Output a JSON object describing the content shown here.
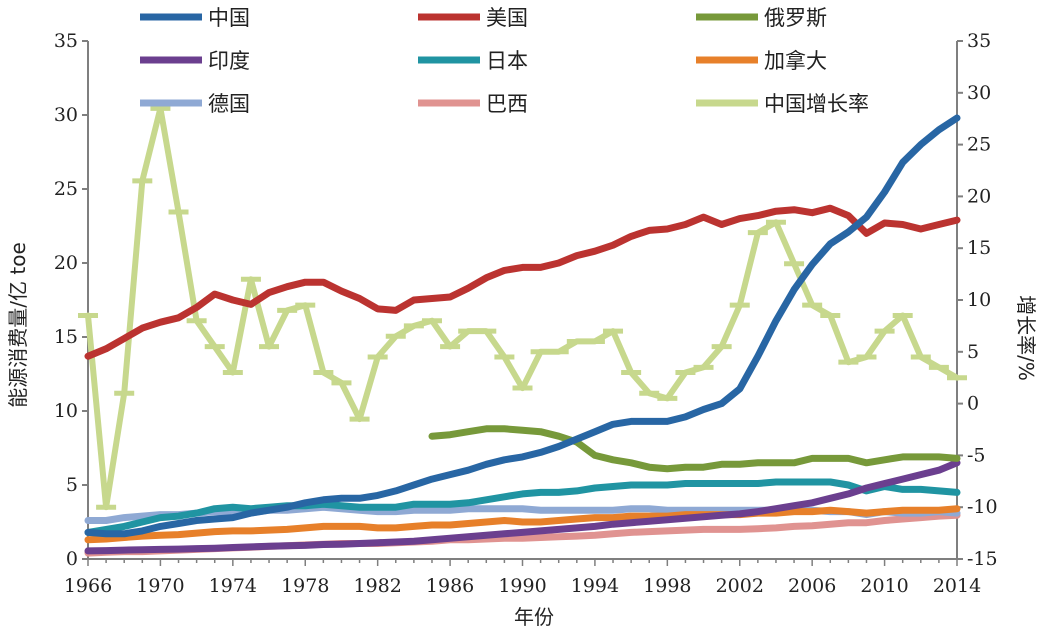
{
  "chart_data": {
    "type": "line",
    "x": [
      1966,
      1967,
      1968,
      1969,
      1970,
      1971,
      1972,
      1973,
      1974,
      1975,
      1976,
      1977,
      1978,
      1979,
      1980,
      1981,
      1982,
      1983,
      1984,
      1985,
      1986,
      1987,
      1988,
      1989,
      1990,
      1991,
      1992,
      1993,
      1994,
      1995,
      1996,
      1997,
      1998,
      1999,
      2000,
      2001,
      2002,
      2003,
      2004,
      2005,
      2006,
      2007,
      2008,
      2009,
      2010,
      2011,
      2012,
      2013,
      2014
    ],
    "xticks": [
      "1966",
      "1970",
      "1974",
      "1978",
      "1982",
      "1986",
      "1990",
      "1994",
      "1998",
      "2002",
      "2006",
      "2010",
      "2014"
    ],
    "xlabel": "年份",
    "ylabel_left": "能源消费量/亿 toe",
    "ylabel_right": "增长率/%",
    "ylim_left": [
      0,
      35
    ],
    "ylim_right": [
      -15,
      35
    ],
    "yticks_left": [
      0,
      5,
      10,
      15,
      20,
      25,
      30,
      35
    ],
    "yticks_right": [
      -15,
      -10,
      -5,
      0,
      5,
      10,
      15,
      20,
      25,
      30,
      35
    ],
    "legend_position": "top",
    "series": [
      {
        "name": "中国",
        "color": "#2866a4",
        "axis": "left",
        "markers": false,
        "values": [
          1.8,
          1.7,
          1.7,
          1.9,
          2.2,
          2.4,
          2.6,
          2.7,
          2.8,
          3.1,
          3.3,
          3.5,
          3.8,
          4.0,
          4.1,
          4.1,
          4.3,
          4.6,
          5.0,
          5.4,
          5.7,
          6.0,
          6.4,
          6.7,
          6.9,
          7.2,
          7.6,
          8.1,
          8.6,
          9.1,
          9.3,
          9.3,
          9.3,
          9.6,
          10.1,
          10.5,
          11.5,
          13.7,
          16.1,
          18.2,
          19.9,
          21.3,
          22.1,
          23.1,
          24.8,
          26.8,
          28.0,
          29.0,
          29.8
        ]
      },
      {
        "name": "美国",
        "color": "#bb3330",
        "axis": "left",
        "markers": false,
        "values": [
          13.7,
          14.2,
          14.9,
          15.6,
          16.0,
          16.3,
          17.0,
          17.9,
          17.5,
          17.2,
          18.0,
          18.4,
          18.7,
          18.7,
          18.1,
          17.6,
          16.9,
          16.8,
          17.5,
          17.6,
          17.7,
          18.3,
          19.0,
          19.5,
          19.7,
          19.7,
          20.0,
          20.5,
          20.8,
          21.2,
          21.8,
          22.2,
          22.3,
          22.6,
          23.1,
          22.6,
          23.0,
          23.2,
          23.5,
          23.6,
          23.4,
          23.7,
          23.2,
          22.0,
          22.7,
          22.6,
          22.3,
          22.6,
          22.9
        ]
      },
      {
        "name": "俄罗斯",
        "color": "#77993a",
        "axis": "left",
        "markers": false,
        "values": [
          null,
          null,
          null,
          null,
          null,
          null,
          null,
          null,
          null,
          null,
          null,
          null,
          null,
          null,
          null,
          null,
          null,
          null,
          null,
          8.3,
          8.4,
          8.6,
          8.8,
          8.8,
          8.7,
          8.6,
          8.3,
          7.9,
          7.0,
          6.7,
          6.5,
          6.2,
          6.1,
          6.2,
          6.2,
          6.4,
          6.4,
          6.5,
          6.5,
          6.5,
          6.8,
          6.8,
          6.8,
          6.5,
          6.7,
          6.9,
          6.9,
          6.9,
          6.8
        ]
      },
      {
        "name": "印度",
        "color": "#6b3f8f",
        "axis": "left",
        "markers": false,
        "values": [
          0.55,
          0.57,
          0.6,
          0.62,
          0.65,
          0.67,
          0.7,
          0.73,
          0.78,
          0.82,
          0.86,
          0.9,
          0.92,
          0.98,
          1.0,
          1.05,
          1.1,
          1.15,
          1.2,
          1.3,
          1.4,
          1.5,
          1.6,
          1.7,
          1.8,
          1.9,
          2.0,
          2.1,
          2.2,
          2.35,
          2.45,
          2.55,
          2.65,
          2.75,
          2.85,
          2.95,
          3.05,
          3.2,
          3.4,
          3.6,
          3.8,
          4.1,
          4.4,
          4.8,
          5.1,
          5.4,
          5.7,
          6.0,
          6.5
        ]
      },
      {
        "name": "日本",
        "color": "#2094a2",
        "axis": "left",
        "markers": false,
        "values": [
          1.8,
          2.0,
          2.2,
          2.5,
          2.8,
          2.9,
          3.1,
          3.4,
          3.5,
          3.4,
          3.5,
          3.6,
          3.6,
          3.7,
          3.6,
          3.5,
          3.5,
          3.5,
          3.7,
          3.7,
          3.7,
          3.8,
          4.0,
          4.2,
          4.4,
          4.5,
          4.5,
          4.6,
          4.8,
          4.9,
          5.0,
          5.0,
          5.0,
          5.1,
          5.1,
          5.1,
          5.1,
          5.1,
          5.2,
          5.2,
          5.2,
          5.2,
          5.0,
          4.6,
          4.9,
          4.7,
          4.7,
          4.6,
          4.5
        ]
      },
      {
        "name": "加拿大",
        "color": "#e7802a",
        "axis": "left",
        "markers": false,
        "values": [
          1.3,
          1.35,
          1.45,
          1.55,
          1.6,
          1.65,
          1.75,
          1.85,
          1.9,
          1.9,
          1.95,
          2.0,
          2.1,
          2.2,
          2.2,
          2.2,
          2.1,
          2.1,
          2.2,
          2.3,
          2.3,
          2.4,
          2.5,
          2.6,
          2.5,
          2.5,
          2.6,
          2.7,
          2.8,
          2.8,
          2.9,
          2.9,
          2.9,
          3.0,
          3.0,
          3.0,
          3.0,
          3.1,
          3.1,
          3.2,
          3.2,
          3.3,
          3.2,
          3.1,
          3.2,
          3.3,
          3.3,
          3.3,
          3.4
        ]
      },
      {
        "name": "德国",
        "color": "#8fa9d4",
        "axis": "left",
        "markers": false,
        "values": [
          2.6,
          2.6,
          2.8,
          2.9,
          3.0,
          3.0,
          3.1,
          3.2,
          3.1,
          3.1,
          3.3,
          3.3,
          3.4,
          3.5,
          3.4,
          3.3,
          3.2,
          3.2,
          3.3,
          3.3,
          3.3,
          3.4,
          3.4,
          3.4,
          3.4,
          3.3,
          3.3,
          3.3,
          3.3,
          3.3,
          3.4,
          3.4,
          3.3,
          3.3,
          3.3,
          3.3,
          3.3,
          3.3,
          3.3,
          3.3,
          3.3,
          3.2,
          3.2,
          3.0,
          3.2,
          3.1,
          3.1,
          3.2,
          3.1
        ]
      },
      {
        "name": "巴西",
        "color": "#e09391",
        "axis": "left",
        "markers": false,
        "values": [
          0.4,
          0.45,
          0.5,
          0.5,
          0.55,
          0.6,
          0.65,
          0.7,
          0.75,
          0.8,
          0.85,
          0.9,
          0.95,
          1.0,
          1.05,
          1.05,
          1.05,
          1.1,
          1.15,
          1.2,
          1.3,
          1.3,
          1.35,
          1.4,
          1.4,
          1.45,
          1.5,
          1.55,
          1.6,
          1.7,
          1.8,
          1.85,
          1.9,
          1.95,
          2.0,
          2.0,
          2.0,
          2.05,
          2.1,
          2.2,
          2.25,
          2.35,
          2.45,
          2.45,
          2.6,
          2.7,
          2.8,
          2.9,
          2.95
        ]
      },
      {
        "name": "中国增长率",
        "color": "#c7d88d",
        "axis": "right",
        "markers": true,
        "values": [
          8.5,
          -10.0,
          1.0,
          21.5,
          28.5,
          18.5,
          8.0,
          5.5,
          3.0,
          12.0,
          5.5,
          9.0,
          9.5,
          3.0,
          2.0,
          -1.5,
          4.5,
          6.5,
          7.5,
          8.0,
          5.5,
          7.0,
          7.0,
          4.5,
          1.5,
          5.0,
          5.0,
          6.0,
          6.0,
          7.0,
          3.0,
          1.0,
          0.5,
          3.0,
          3.5,
          5.5,
          9.5,
          16.5,
          17.5,
          13.5,
          9.5,
          8.5,
          4.0,
          4.5,
          7.0,
          8.5,
          4.5,
          3.5,
          2.5
        ]
      }
    ]
  }
}
